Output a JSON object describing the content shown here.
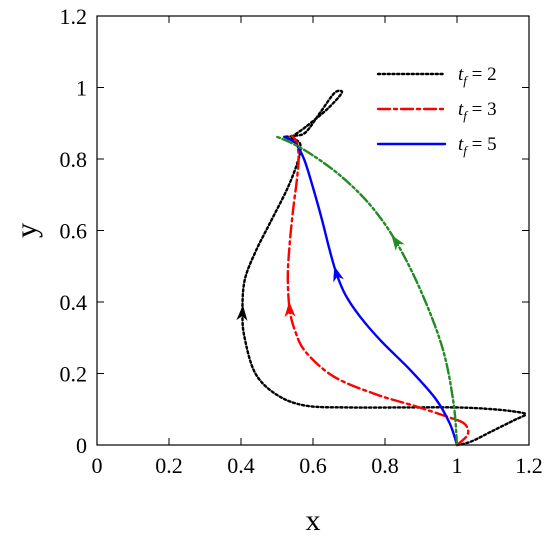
{
  "chart_data": {
    "type": "line",
    "title": "",
    "xlabel": "x",
    "ylabel": "y",
    "xlim": [
      0,
      1.2
    ],
    "ylim": [
      0,
      1.2
    ],
    "xticks": [
      "0",
      "0.2",
      "0.4",
      "0.6",
      "0.8",
      "1",
      "1.2"
    ],
    "yticks": [
      "0",
      "0.2",
      "0.4",
      "0.6",
      "0.8",
      "1",
      "1.2"
    ],
    "legend_position": "top-right",
    "series": [
      {
        "name": "t_f = 2",
        "legend_main": "t",
        "legend_sub": "f",
        "legend_rest": " = 2",
        "color": "#000000",
        "style": "dotted",
        "points": [
          [
            1.0,
            0.0
          ],
          [
            1.04,
            0.01
          ],
          [
            1.1,
            0.04
          ],
          [
            1.16,
            0.07
          ],
          [
            1.19,
            0.085
          ],
          [
            1.17,
            0.092
          ],
          [
            1.1,
            0.1
          ],
          [
            1.0,
            0.105
          ],
          [
            0.85,
            0.105
          ],
          [
            0.7,
            0.105
          ],
          [
            0.58,
            0.11
          ],
          [
            0.5,
            0.14
          ],
          [
            0.44,
            0.2
          ],
          [
            0.41,
            0.3
          ],
          [
            0.404,
            0.37
          ],
          [
            0.41,
            0.46
          ],
          [
            0.44,
            0.54
          ],
          [
            0.48,
            0.62
          ],
          [
            0.53,
            0.72
          ],
          [
            0.56,
            0.8
          ],
          [
            0.565,
            0.84
          ],
          [
            0.55,
            0.855
          ],
          [
            0.54,
            0.86
          ],
          [
            0.58,
            0.89
          ],
          [
            0.64,
            0.94
          ],
          [
            0.68,
            0.985
          ],
          [
            0.66,
            0.985
          ],
          [
            0.62,
            0.93
          ],
          [
            0.58,
            0.875
          ],
          [
            0.55,
            0.865
          ],
          [
            0.52,
            0.862
          ]
        ],
        "arrow_at": 14
      },
      {
        "name": "t_f = 3",
        "legend_main": "t",
        "legend_sub": "f",
        "legend_rest": " = 3",
        "color": "#ff0000",
        "style": "dashdot",
        "points": [
          [
            1.0,
            0.0
          ],
          [
            1.03,
            0.03
          ],
          [
            1.02,
            0.06
          ],
          [
            0.97,
            0.08
          ],
          [
            0.88,
            0.11
          ],
          [
            0.78,
            0.14
          ],
          [
            0.66,
            0.19
          ],
          [
            0.58,
            0.26
          ],
          [
            0.55,
            0.32
          ],
          [
            0.535,
            0.38
          ],
          [
            0.53,
            0.47
          ],
          [
            0.535,
            0.56
          ],
          [
            0.545,
            0.66
          ],
          [
            0.555,
            0.74
          ],
          [
            0.56,
            0.8
          ],
          [
            0.555,
            0.845
          ],
          [
            0.54,
            0.865
          ],
          [
            0.53,
            0.855
          ]
        ],
        "arrow_at": 9
      },
      {
        "name": "t_f = 5",
        "legend_main": "t",
        "legend_sub": "f",
        "legend_rest": " = 5",
        "color": "#0000ff",
        "style": "solid",
        "points": [
          [
            1.0,
            0.0
          ],
          [
            0.98,
            0.06
          ],
          [
            0.94,
            0.13
          ],
          [
            0.87,
            0.21
          ],
          [
            0.79,
            0.29
          ],
          [
            0.73,
            0.36
          ],
          [
            0.69,
            0.42
          ],
          [
            0.665,
            0.48
          ],
          [
            0.645,
            0.55
          ],
          [
            0.625,
            0.63
          ],
          [
            0.6,
            0.72
          ],
          [
            0.575,
            0.8
          ],
          [
            0.55,
            0.845
          ],
          [
            0.52,
            0.862
          ]
        ],
        "arrow_at": 7
      },
      {
        "name": "",
        "color": "#228b22",
        "style": "dashdotdot",
        "points": [
          [
            1.0,
            0.0
          ],
          [
            0.99,
            0.12
          ],
          [
            0.96,
            0.27
          ],
          [
            0.9,
            0.43
          ],
          [
            0.83,
            0.57
          ],
          [
            0.76,
            0.67
          ],
          [
            0.68,
            0.75
          ],
          [
            0.6,
            0.81
          ],
          [
            0.54,
            0.845
          ],
          [
            0.5,
            0.862
          ]
        ],
        "arrow_at": 4
      }
    ]
  }
}
